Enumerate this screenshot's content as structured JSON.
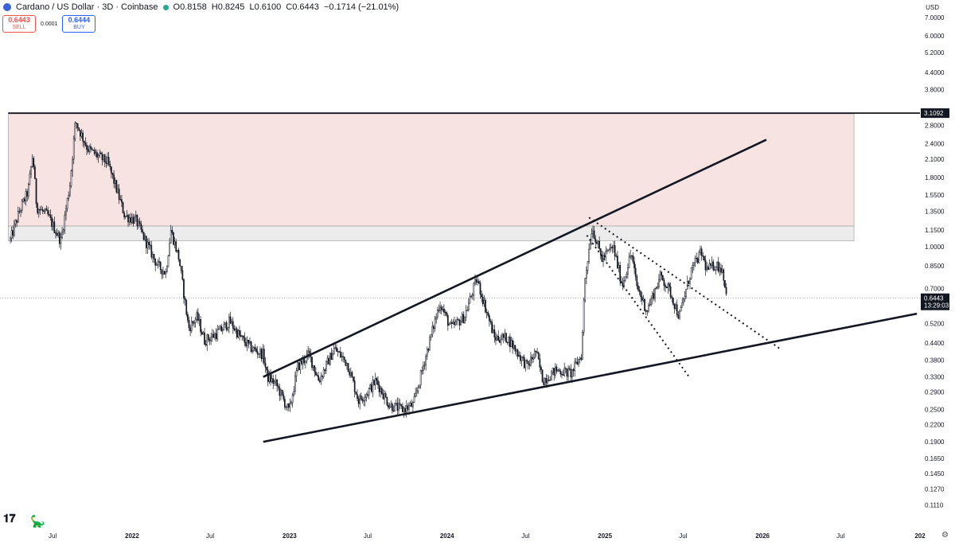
{
  "header": {
    "title": "Cardano / US Dollar · 3D · Coinbase",
    "open": "O0.8158",
    "high": "H0.8245",
    "low": "L0.6100",
    "close": "C0.6443",
    "change": "−0.1714 (−21.01%)"
  },
  "trade": {
    "sell_price": "0.6443",
    "sell_label": "SELL",
    "spread": "0.0001",
    "buy_price": "0.6444",
    "buy_label": "BUY"
  },
  "currency": "USD",
  "colors": {
    "up": "#131722",
    "zone_red": "#f8e3e3",
    "zone_grey": "#ececec",
    "price_tag": "#131722"
  },
  "chart_data": {
    "type": "candlestick",
    "y_scale": "log",
    "ylim": [
      0.1,
      7.4
    ],
    "xlim": [
      "2021-03-01",
      "2027-01-01"
    ],
    "y_tick_labels": [
      "7.0000",
      "6.0000",
      "5.2000",
      "4.4000",
      "3.8000",
      "2.8000",
      "2.4000",
      "2.1000",
      "1.8000",
      "1.5500",
      "1.3500",
      "1.1500",
      "1.0000",
      "0.8500",
      "0.7000",
      "0.5200",
      "0.4400",
      "0.3800",
      "0.3300",
      "0.2900",
      "0.2500",
      "0.2200",
      "0.1900",
      "0.1650",
      "0.1450",
      "0.1270",
      "0.1110"
    ],
    "x_tick_labels": [
      {
        "date": "2021-07-01",
        "label": "Jul",
        "bold": false
      },
      {
        "date": "2022-01-01",
        "label": "2022",
        "bold": true
      },
      {
        "date": "2022-07-01",
        "label": "Jul",
        "bold": false
      },
      {
        "date": "2023-01-01",
        "label": "2023",
        "bold": true
      },
      {
        "date": "2023-07-01",
        "label": "Jul",
        "bold": false
      },
      {
        "date": "2024-01-01",
        "label": "2024",
        "bold": true
      },
      {
        "date": "2024-07-01",
        "label": "Jul",
        "bold": false
      },
      {
        "date": "2025-01-01",
        "label": "2025",
        "bold": true
      },
      {
        "date": "2025-07-01",
        "label": "Jul",
        "bold": false
      },
      {
        "date": "2026-01-01",
        "label": "2026",
        "bold": true
      },
      {
        "date": "2026-07-01",
        "label": "Jul",
        "bold": false
      },
      {
        "date": "2027-01-01",
        "label": "202",
        "bold": true
      }
    ],
    "price_anchors": [
      [
        "2021-03-25",
        1.06
      ],
      [
        "2021-04-15",
        1.35
      ],
      [
        "2021-05-05",
        1.6
      ],
      [
        "2021-05-16",
        2.2
      ],
      [
        "2021-05-25",
        1.4
      ],
      [
        "2021-06-20",
        1.3
      ],
      [
        "2021-07-20",
        1.05
      ],
      [
        "2021-08-10",
        1.7
      ],
      [
        "2021-08-23",
        2.9
      ],
      [
        "2021-09-05",
        2.6
      ],
      [
        "2021-09-20",
        2.3
      ],
      [
        "2021-10-15",
        2.15
      ],
      [
        "2021-11-05",
        2.05
      ],
      [
        "2021-11-25",
        1.65
      ],
      [
        "2021-12-15",
        1.3
      ],
      [
        "2022-01-10",
        1.25
      ],
      [
        "2022-02-01",
        1.05
      ],
      [
        "2022-03-01",
        0.85
      ],
      [
        "2022-03-20",
        0.8
      ],
      [
        "2022-04-01",
        1.15
      ],
      [
        "2022-04-20",
        0.9
      ],
      [
        "2022-05-12",
        0.5
      ],
      [
        "2022-06-01",
        0.55
      ],
      [
        "2022-06-18",
        0.45
      ],
      [
        "2022-07-10",
        0.47
      ],
      [
        "2022-08-01",
        0.5
      ],
      [
        "2022-08-15",
        0.53
      ],
      [
        "2022-09-10",
        0.46
      ],
      [
        "2022-10-05",
        0.42
      ],
      [
        "2022-11-01",
        0.4
      ],
      [
        "2022-11-10",
        0.33
      ],
      [
        "2022-12-01",
        0.31
      ],
      [
        "2022-12-31",
        0.245
      ],
      [
        "2023-01-20",
        0.36
      ],
      [
        "2023-02-15",
        0.4
      ],
      [
        "2023-03-10",
        0.32
      ],
      [
        "2023-04-15",
        0.42
      ],
      [
        "2023-05-15",
        0.37
      ],
      [
        "2023-06-10",
        0.27
      ],
      [
        "2023-07-01",
        0.29
      ],
      [
        "2023-07-20",
        0.32
      ],
      [
        "2023-08-20",
        0.26
      ],
      [
        "2023-09-20",
        0.25
      ],
      [
        "2023-10-15",
        0.26
      ],
      [
        "2023-11-10",
        0.38
      ],
      [
        "2023-12-15",
        0.62
      ],
      [
        "2024-01-10",
        0.5
      ],
      [
        "2024-02-10",
        0.55
      ],
      [
        "2024-03-10",
        0.76
      ],
      [
        "2024-04-01",
        0.58
      ],
      [
        "2024-04-20",
        0.46
      ],
      [
        "2024-05-20",
        0.46
      ],
      [
        "2024-06-15",
        0.4
      ],
      [
        "2024-07-05",
        0.36
      ],
      [
        "2024-07-25",
        0.41
      ],
      [
        "2024-08-10",
        0.32
      ],
      [
        "2024-09-10",
        0.35
      ],
      [
        "2024-10-15",
        0.34
      ],
      [
        "2024-11-08",
        0.4
      ],
      [
        "2024-11-15",
        0.75
      ],
      [
        "2024-12-02",
        1.18
      ],
      [
        "2024-12-25",
        0.9
      ],
      [
        "2025-01-20",
        1.0
      ],
      [
        "2025-02-10",
        0.72
      ],
      [
        "2025-03-03",
        0.95
      ],
      [
        "2025-03-15",
        0.72
      ],
      [
        "2025-04-08",
        0.58
      ],
      [
        "2025-05-10",
        0.78
      ],
      [
        "2025-06-01",
        0.68
      ],
      [
        "2025-06-22",
        0.55
      ],
      [
        "2025-07-20",
        0.82
      ],
      [
        "2025-08-12",
        0.95
      ],
      [
        "2025-08-25",
        0.82
      ],
      [
        "2025-09-15",
        0.86
      ],
      [
        "2025-10-01",
        0.82
      ],
      [
        "2025-10-10",
        0.6443
      ]
    ],
    "horizontal_line": {
      "price": 3.1092,
      "label": "3.1092"
    },
    "current_price": {
      "price": 0.6443,
      "label": "0.6443",
      "countdown": "13:29:03"
    },
    "zones": [
      {
        "name": "resistance-zone-red",
        "from": "2021-03-20",
        "to": "2026-08-01",
        "low": 1.19,
        "high": 3.09
      },
      {
        "name": "resistance-zone-grey",
        "from": "2021-03-20",
        "to": "2026-08-01",
        "low": 1.05,
        "high": 1.19
      }
    ],
    "trendlines": [
      {
        "name": "upper-wedge-line",
        "style": "solid",
        "p1": [
          "2022-11-01",
          0.33
        ],
        "p2": [
          "2026-01-10",
          2.48
        ]
      },
      {
        "name": "lower-wedge-line",
        "style": "solid",
        "p1": [
          "2022-11-01",
          0.19
        ],
        "p2": [
          "2026-12-25",
          0.565
        ]
      },
      {
        "name": "channel-top-dotted",
        "style": "dotted",
        "p1": [
          "2024-11-25",
          1.28
        ],
        "p2": [
          "2026-02-10",
          0.42
        ]
      },
      {
        "name": "channel-bottom-dotted",
        "style": "dotted",
        "p1": [
          "2024-11-20",
          1.1
        ],
        "p2": [
          "2025-07-15",
          0.33
        ]
      }
    ]
  }
}
